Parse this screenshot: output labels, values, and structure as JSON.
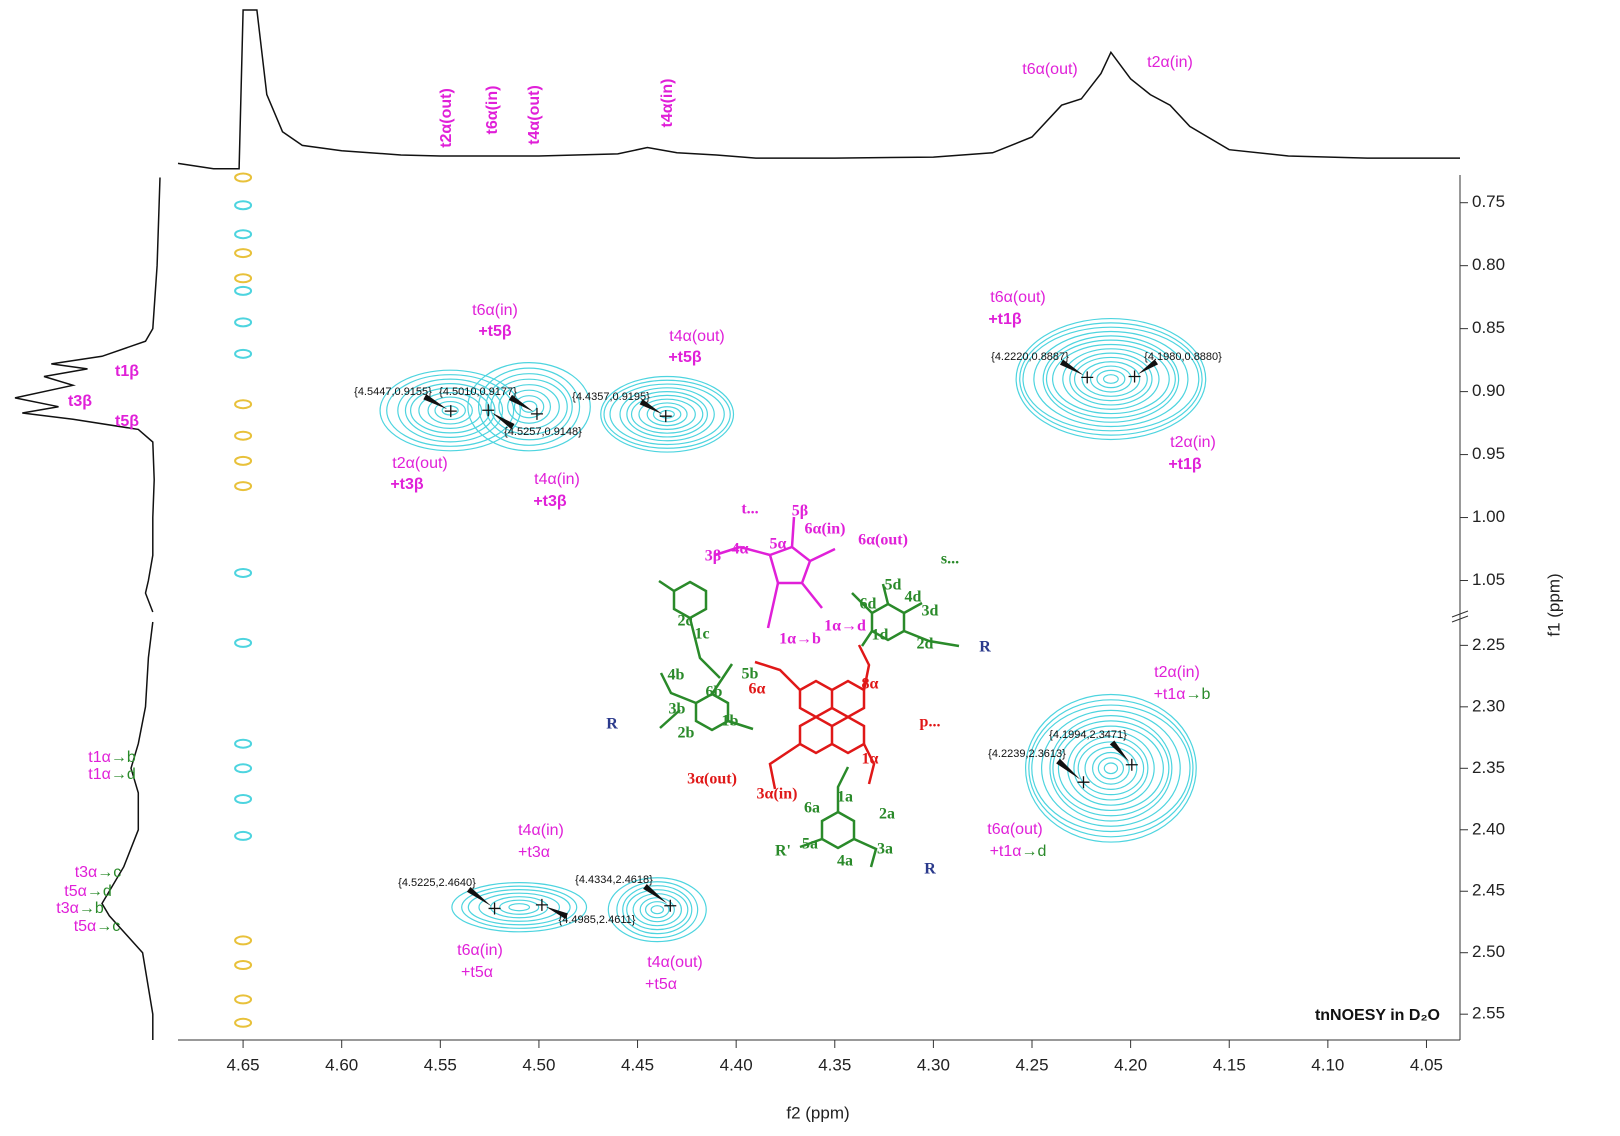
{
  "chart_data": {
    "type": "contour",
    "title": "tnNOESY in D₂O",
    "x_label": "f2 (ppm)",
    "y_label": "f1 (ppm)",
    "xlim": [
      4.683,
      4.033
    ],
    "xticks": [
      4.65,
      {
        "value": 4.6,
        "label": "4.60"
      },
      4.55,
      {
        "value": 4.5,
        "label": "4.50"
      },
      4.45,
      {
        "value": 4.4,
        "label": "4.40"
      },
      4.35,
      {
        "value": 4.3,
        "label": "4.30"
      },
      4.25,
      {
        "value": 4.2,
        "label": "4.20"
      },
      4.15,
      {
        "value": 4.1,
        "label": "4.10"
      },
      4.05
    ],
    "y_panels": [
      {
        "ylim": [
          0.728,
          1.075
        ],
        "yticks": [
          0.75,
          {
            "value": 0.8,
            "label": "0.80"
          },
          0.85,
          {
            "value": 0.9,
            "label": "0.90"
          },
          0.95,
          {
            "value": 1.0,
            "label": "1.00"
          },
          1.05
        ]
      },
      {
        "ylim": [
          2.231,
          2.571
        ],
        "yticks": [
          2.25,
          {
            "value": 2.3,
            "label": "2.30"
          },
          2.35,
          {
            "value": 2.4,
            "label": "2.40"
          },
          2.45,
          {
            "value": 2.5,
            "label": "2.50"
          },
          2.55
        ]
      }
    ],
    "contour_color": "#4dd4df",
    "regions": [
      {
        "x": 4.545,
        "y": 0.915,
        "rx": 0.035,
        "ry": 0.032,
        "levels": 9
      },
      {
        "x": 4.505,
        "y": 0.912,
        "rx": 0.03,
        "ry": 0.035,
        "levels": 8
      },
      {
        "x": 4.435,
        "y": 0.918,
        "rx": 0.035,
        "ry": 0.03,
        "levels": 10
      },
      {
        "x": 4.21,
        "y": 0.89,
        "rx": 0.05,
        "ry": 0.048,
        "levels": 14
      },
      {
        "x": 4.21,
        "y": 2.35,
        "rx": 0.045,
        "ry": 0.06,
        "levels": 14
      },
      {
        "x": 4.51,
        "y": 2.463,
        "rx": 0.035,
        "ry": 0.02,
        "levels": 7
      },
      {
        "x": 4.44,
        "y": 2.465,
        "rx": 0.024,
        "ry": 0.026,
        "levels": 8
      }
    ],
    "diagonal": {
      "x": 4.65,
      "spots": [
        {
          "y": 0.73,
          "color": "#e8c13a"
        },
        {
          "y": 0.752,
          "color": "#4dd4df"
        },
        {
          "y": 0.775,
          "color": "#4dd4df"
        },
        {
          "y": 0.79,
          "color": "#e8c13a"
        },
        {
          "y": 0.81,
          "color": "#e8c13a"
        },
        {
          "y": 0.82,
          "color": "#4dd4df"
        },
        {
          "y": 0.845,
          "color": "#4dd4df"
        },
        {
          "y": 0.87,
          "color": "#4dd4df"
        },
        {
          "y": 0.91,
          "color": "#e8c13a"
        },
        {
          "y": 0.935,
          "color": "#e8c13a"
        },
        {
          "y": 0.955,
          "color": "#e8c13a"
        },
        {
          "y": 0.975,
          "color": "#e8c13a"
        },
        {
          "y": 1.044,
          "color": "#4dd4df"
        },
        {
          "y": 2.248,
          "color": "#4dd4df"
        },
        {
          "y": 2.33,
          "color": "#4dd4df"
        },
        {
          "y": 2.35,
          "color": "#4dd4df"
        },
        {
          "y": 2.375,
          "color": "#4dd4df"
        },
        {
          "y": 2.405,
          "color": "#4dd4df"
        },
        {
          "y": 2.49,
          "color": "#e8c13a"
        },
        {
          "y": 2.51,
          "color": "#e8c13a"
        },
        {
          "y": 2.538,
          "color": "#e8c13a"
        },
        {
          "y": 2.557,
          "color": "#e8c13a"
        }
      ]
    },
    "peaks": [
      {
        "x": 4.5447,
        "y": 0.9155,
        "label": "{4.5447,0.9155}"
      },
      {
        "x": 4.501,
        "y": 0.9177,
        "label": "{4.5010,0.9177}"
      },
      {
        "x": 4.5257,
        "y": 0.9148,
        "label": "{4.5257,0.9148}"
      },
      {
        "x": 4.4357,
        "y": 0.9195,
        "label": "{4.4357,0.9195}"
      },
      {
        "x": 4.222,
        "y": 0.8887,
        "label": "{4.2220,0.8887}"
      },
      {
        "x": 4.198,
        "y": 0.888,
        "label": "{4.1980,0.8880}"
      },
      {
        "x": 4.1994,
        "y": 2.3471,
        "label": "{4.1994,2.3471}"
      },
      {
        "x": 4.2239,
        "y": 2.3613,
        "label": "{4.2239,2.3613}"
      },
      {
        "x": 4.5225,
        "y": 2.464,
        "label": "{4.5225,2.4640}"
      },
      {
        "x": 4.4985,
        "y": 2.4611,
        "label": "{4.4985,2.4611}"
      },
      {
        "x": 4.4334,
        "y": 2.4618,
        "label": "{4.4334,2.4618}"
      }
    ],
    "top_trace": {
      "ylim": [
        -15,
        140
      ],
      "x": [
        4.683,
        4.665,
        4.652,
        4.65,
        4.643,
        4.638,
        4.63,
        4.62,
        4.6,
        4.57,
        4.55,
        4.5,
        4.46,
        4.445,
        4.43,
        4.41,
        4.39,
        4.35,
        4.3,
        4.27,
        4.25,
        4.235,
        4.225,
        4.215,
        4.21,
        4.2,
        4.19,
        4.18,
        4.17,
        4.15,
        4.12,
        4.08,
        4.04,
        4.033
      ],
      "values": [
        -5,
        -10,
        -10,
        140,
        140,
        60,
        25,
        12,
        7,
        3,
        2,
        2,
        4,
        10,
        5,
        3,
        0,
        0,
        1,
        5,
        20,
        50,
        56,
        80,
        100,
        75,
        60,
        50,
        30,
        8,
        2,
        0,
        0,
        0
      ]
    },
    "left_trace": {
      "xlim": [
        0,
        100
      ],
      "y": [
        0.73,
        0.8,
        0.85,
        0.86,
        0.872,
        0.878,
        0.882,
        0.888,
        0.895,
        0.905,
        0.912,
        0.917,
        0.922,
        0.93,
        0.94,
        0.97,
        1.0,
        1.03,
        1.05,
        1.06,
        1.075,
        null,
        2.231,
        2.26,
        2.3,
        2.33,
        2.35,
        2.37,
        2.4,
        2.43,
        2.45,
        2.46,
        2.47,
        2.5,
        2.55,
        2.571
      ],
      "values": [
        0,
        2,
        5,
        10,
        40,
        75,
        50,
        80,
        60,
        100,
        70,
        95,
        60,
        15,
        5,
        4,
        5,
        5,
        8,
        10,
        5,
        null,
        5,
        8,
        10,
        15,
        20,
        15,
        15,
        25,
        35,
        40,
        35,
        12,
        5,
        5
      ]
    },
    "annotations": [
      {
        "parts": [
          {
            "text": "t2α(out)",
            "color": "#e020d8"
          }
        ]
      },
      {
        "parts": [
          {
            "text": "t6α(in)",
            "color": "#e020d8"
          }
        ]
      },
      {
        "parts": [
          {
            "text": "t4α(out)",
            "color": "#e020d8"
          }
        ]
      },
      {
        "parts": [
          {
            "text": "t4α(in)",
            "color": "#e020d8"
          }
        ]
      },
      {
        "parts": [
          {
            "text": "t6α(out)",
            "color": "#e020d8"
          }
        ]
      },
      {
        "parts": [
          {
            "text": "t2α(in)",
            "color": "#e020d8"
          }
        ]
      },
      {
        "parts": [
          {
            "text": "t1β",
            "color": "#e020d8"
          }
        ]
      },
      {
        "parts": [
          {
            "text": "t3β",
            "color": "#e020d8"
          }
        ]
      },
      {
        "parts": [
          {
            "text": "t5β",
            "color": "#e020d8"
          }
        ]
      },
      {
        "parts": [
          {
            "text": "t1α",
            "color": "#e020d8"
          },
          {
            "text": "→b",
            "color": "#2a8a2a"
          }
        ]
      },
      {
        "parts": [
          {
            "text": "t1α",
            "color": "#e020d8"
          },
          {
            "text": "→d",
            "color": "#2a8a2a"
          }
        ]
      },
      {
        "parts": [
          {
            "text": "t3α",
            "color": "#e020d8"
          },
          {
            "text": "→c",
            "color": "#2a8a2a"
          }
        ]
      },
      {
        "parts": [
          {
            "text": "t5α",
            "color": "#e020d8"
          },
          {
            "text": "→d",
            "color": "#2a8a2a"
          }
        ]
      },
      {
        "parts": [
          {
            "text": "t3α",
            "color": "#e020d8"
          },
          {
            "text": "→b",
            "color": "#2a8a2a"
          }
        ]
      },
      {
        "parts": [
          {
            "text": "t5α",
            "color": "#e020d8"
          },
          {
            "text": "→c",
            "color": "#2a8a2a"
          }
        ]
      },
      {
        "parts": [
          {
            "text": "t6α(in)",
            "color": "#e020d8"
          }
        ]
      },
      {
        "parts": [
          {
            "text": "+t5β",
            "color": "#e020d8"
          }
        ]
      },
      {
        "parts": [
          {
            "text": "t4α(out)",
            "color": "#e020d8"
          }
        ]
      },
      {
        "parts": [
          {
            "text": "+t5β",
            "color": "#e020d8"
          }
        ]
      },
      {
        "parts": [
          {
            "text": "t2α(out)",
            "color": "#e020d8"
          }
        ]
      },
      {
        "parts": [
          {
            "text": "+t3β",
            "color": "#e020d8"
          }
        ]
      },
      {
        "parts": [
          {
            "text": "t4α(in)",
            "color": "#e020d8"
          }
        ]
      },
      {
        "parts": [
          {
            "text": "+t3β",
            "color": "#e020d8"
          }
        ]
      },
      {
        "parts": [
          {
            "text": "t6α(out)",
            "color": "#e020d8"
          }
        ]
      },
      {
        "parts": [
          {
            "text": "+t1β",
            "color": "#e020d8"
          }
        ]
      },
      {
        "parts": [
          {
            "text": "t2α(in)",
            "color": "#e020d8"
          }
        ]
      },
      {
        "parts": [
          {
            "text": "+t1β",
            "color": "#e020d8"
          }
        ]
      },
      {
        "parts": [
          {
            "text": "t2α(in)",
            "color": "#e020d8"
          }
        ]
      },
      {
        "parts": [
          {
            "text": "+t1α",
            "color": "#e020d8"
          },
          {
            "text": "→b",
            "color": "#2a8a2a"
          }
        ]
      },
      {
        "parts": [
          {
            "text": "t6α(out)",
            "color": "#e020d8"
          }
        ]
      },
      {
        "parts": [
          {
            "text": "+t1α",
            "color": "#e020d8"
          },
          {
            "text": "→d",
            "color": "#2a8a2a"
          }
        ]
      },
      {
        "parts": [
          {
            "text": "t4α(in)",
            "color": "#e020d8"
          }
        ]
      },
      {
        "parts": [
          {
            "text": "+t3α",
            "color": "#e020d8"
          }
        ]
      },
      {
        "parts": [
          {
            "text": "t6α(in)",
            "color": "#e020d8"
          }
        ]
      },
      {
        "parts": [
          {
            "text": "+t5α",
            "color": "#e020d8"
          }
        ]
      },
      {
        "parts": [
          {
            "text": "t4α(out)",
            "color": "#e020d8"
          }
        ]
      },
      {
        "parts": [
          {
            "text": "+t5α",
            "color": "#e020d8"
          }
        ]
      }
    ],
    "structure_labels": [
      {
        "text": "t...",
        "color": "#e020d8"
      },
      {
        "text": "5β",
        "color": "#e020d8"
      },
      {
        "text": "6α(in)",
        "color": "#e020d8"
      },
      {
        "text": "6α(out)",
        "color": "#e020d8"
      },
      {
        "text": "5α",
        "color": "#e020d8"
      },
      {
        "text": "4α",
        "color": "#e020d8"
      },
      {
        "text": "3β",
        "color": "#e020d8"
      },
      {
        "text": "s...",
        "color": "#2a8a2a"
      },
      {
        "text": "1α→b",
        "color": "#e020d8"
      },
      {
        "text": "1α→d",
        "color": "#e020d8"
      },
      {
        "text": "6α",
        "color": "#e01818"
      },
      {
        "text": "8α",
        "color": "#e01818"
      },
      {
        "text": "p...",
        "color": "#e01818"
      },
      {
        "text": "3α(out)",
        "color": "#e01818"
      },
      {
        "text": "3α(in)",
        "color": "#e01818"
      },
      {
        "text": "1α",
        "color": "#e01818"
      },
      {
        "text": "R",
        "color": "#2b3a8c"
      },
      {
        "text": "R",
        "color": "#2b3a8c"
      },
      {
        "text": "R",
        "color": "#2b3a8c"
      },
      {
        "text": "R'",
        "color": "#2a8a2a"
      },
      {
        "text": "1a",
        "color": "#2a8a2a"
      },
      {
        "text": "2a",
        "color": "#2a8a2a"
      },
      {
        "text": "3a",
        "color": "#2a8a2a"
      },
      {
        "text": "4a",
        "color": "#2a8a2a"
      },
      {
        "text": "5a",
        "color": "#2a8a2a"
      },
      {
        "text": "6a",
        "color": "#2a8a2a"
      },
      {
        "text": "3b",
        "color": "#2a8a2a"
      },
      {
        "text": "2b",
        "color": "#2a8a2a"
      },
      {
        "text": "1b",
        "color": "#2a8a2a"
      },
      {
        "text": "5b",
        "color": "#2a8a2a"
      },
      {
        "text": "4b",
        "color": "#2a8a2a"
      },
      {
        "text": "6b",
        "color": "#2a8a2a"
      },
      {
        "text": "1c",
        "color": "#2a8a2a"
      },
      {
        "text": "2c",
        "color": "#2a8a2a"
      },
      {
        "text": "5d",
        "color": "#2a8a2a"
      },
      {
        "text": "4d",
        "color": "#2a8a2a"
      },
      {
        "text": "3d",
        "color": "#2a8a2a"
      },
      {
        "text": "2d",
        "color": "#2a8a2a"
      },
      {
        "text": "1d",
        "color": "#2a8a2a"
      },
      {
        "text": "6d",
        "color": "#2a8a2a"
      }
    ]
  }
}
